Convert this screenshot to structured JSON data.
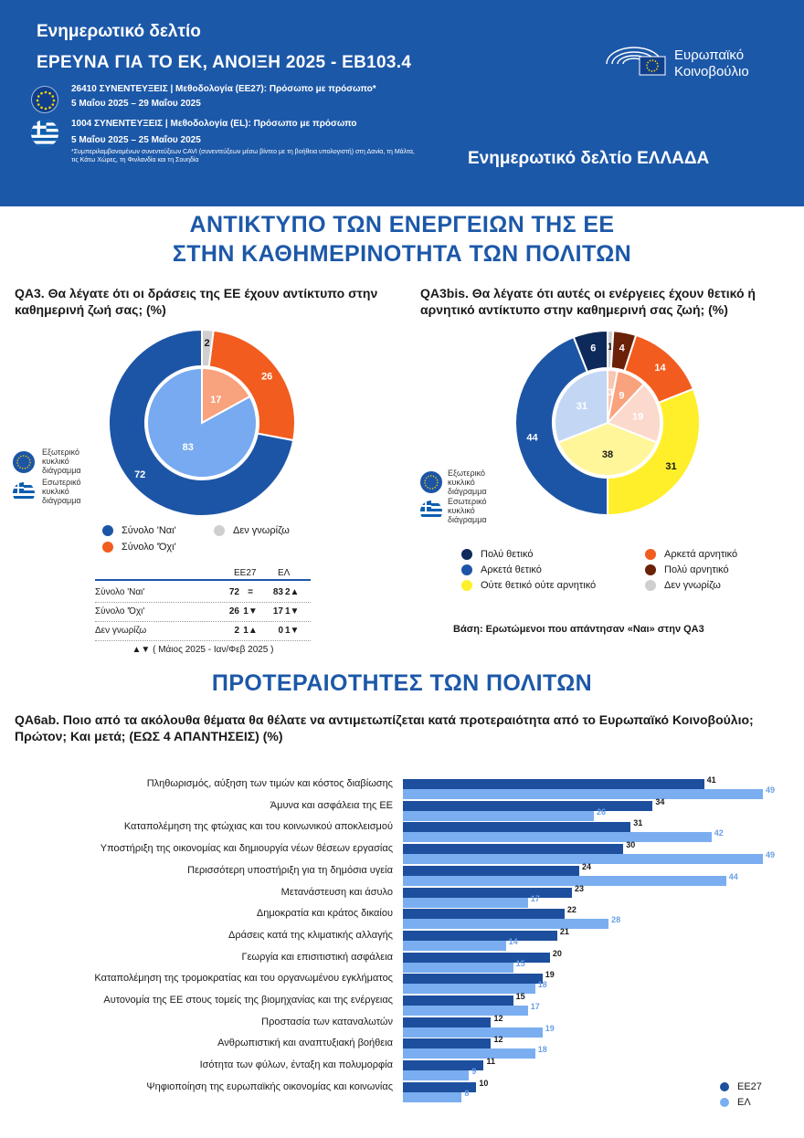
{
  "header": {
    "title_line1": "Ενημερωτικό δελτίο",
    "title_line2": "ΕΡΕΥΝΑ ΓΙΑ ΤΟ ΕΚ, ΑΝΟΙΞΗ 2025 - EB103.4",
    "eu_line1": "26410 ΣΥΝΕΝΤΕΥΞΕΙΣ | Μεθοδολογία (ΕΕ27): Πρόσωπο με πρόσωπο*",
    "eu_line2": "5 Μαΐου 2025 – 29 Μαΐου 2025",
    "gr_line1": "1004 ΣΥΝΕΝΤΕΥΞΕΙΣ | Μεθοδολογία (ΕL): Πρόσωπο με πρόσωπο",
    "gr_line2": "5 Μαΐου 2025 – 25 Μαΐου 2025",
    "note": "*Συμπεριλαμβανομένων συνεντεύξεων CAVI (συνεντεύξεων μέσω βίντεο με τη βοήθεια υπολογιστή) στη Δανία, τη Μάλτα, τις Κάτω Χώρες, τη Φινλανδία και τη Σουηδία",
    "logo_line1": "Ευρωπαϊκό",
    "logo_line2": "Κοινοβούλιο",
    "country_title": "Ενημερωτικό δελτίο ΕΛΛΑΔΑ"
  },
  "section1": {
    "title_line1": "ΑΝΤΙΚΤΥΠΟ ΤΩΝ ΕΝΕΡΓΕΙΩΝ ΤΗΣ ΕΕ",
    "title_line2": "ΣΤΗΝ  ΚΑΘΗΜΕΡΙΝΟΤΗΤΑ ΤΩΝ ΠΟΛΙΤΩΝ"
  },
  "section2": {
    "title": "ΠΡΟΤΕΡΑΙΟΤΗΤΕΣ ΤΩΝ ΠΟΛΙΤΩΝ"
  },
  "ring_legend": {
    "outer_line1": "Εξωτερικό",
    "outer_line2": "κυκλικό",
    "outer_line3": "διάγραμμα",
    "inner_line1": "Εσωτερικό",
    "inner_line2": "κυκλικό",
    "inner_line3": "διάγραμμα"
  },
  "table": {
    "col_eu": "ΕΕ27",
    "col_gr": "ΕΛ",
    "rows": [
      {
        "label": "Σύνολο 'Ναι'",
        "eu": "72",
        "mid": "=",
        "gr": "83",
        "chg": "2▲"
      },
      {
        "label": "Σύνολο 'Όχι'",
        "eu": "26",
        "mid": "1▼",
        "gr": "17",
        "chg": "1▼"
      },
      {
        "label": "Δεν γνωρίζω",
        "eu": "2",
        "mid": "1▲",
        "gr": "0",
        "chg": "1▼"
      }
    ],
    "footnote": "▲▼ ( Μάιος 2025 - Ιαν/Φεβ 2025 )"
  },
  "base_note": "Βάση: Ερωτώμενοι που απάντησαν «Ναι» στην QA3",
  "colors": {
    "brand": "#1c58a8",
    "yes": "#1d55a6",
    "no": "#f25c1f",
    "dk": "#cfcfcf",
    "very_pos": "#0e2a5a",
    "fairly_pos": "#1d55a6",
    "neutral": "#ffef2a",
    "fairly_neg": "#f25c1f",
    "very_neg": "#6b2108",
    "eu27_bar": "#1d4f9e",
    "el_bar": "#7aaef0"
  },
  "chart_data": [
    {
      "type": "pie",
      "title": "QA3. Θα λέγατε ότι οι δράσεις της ΕΕ έχουν αντίκτυπο στην καθημερινή ζωή σας; (%)",
      "legend": [
        "Σύνολο 'Ναι'",
        "Σύνολο 'Όχι'",
        "Δεν γνωρίζω"
      ],
      "outer": {
        "name": "Εξωτερικό κυκλικό διάγραμμα",
        "labels": [
          "Δεν γνωρίζω",
          "Σύνολο 'Όχι'",
          "Σύνολο 'Ναι'"
        ],
        "values": [
          2,
          26,
          72
        ]
      },
      "inner": {
        "name": "Εσωτερικό κυκλικό διάγραμμα",
        "labels": [
          "Σύνολο 'Όχι'",
          "Σύνολο 'Ναι'"
        ],
        "values": [
          17,
          83
        ]
      }
    },
    {
      "type": "pie",
      "title": "QA3bis. Θα λέγατε ότι αυτές οι ενέργειες έχουν θετικό ή αρνητικό αντίκτυπο στην καθημερινή σας ζωή; (%)",
      "legend": [
        "Πολύ θετικό",
        "Αρκετά θετικό",
        "Ούτε θετικό ούτε αρνητικό",
        "Αρκετά αρνητικό",
        "Πολύ αρνητικό",
        "Δεν γνωρίζω"
      ],
      "outer": {
        "name": "Εξωτερικό κυκλικό διάγραμμα",
        "labels": [
          "Δεν γνωρίζω",
          "Πολύ αρνητικό",
          "Αρκετά αρνητικό",
          "Ούτε θετικό ούτε αρνητικό",
          "Αρκετά θετικό",
          "Πολύ θετικό"
        ],
        "values": [
          1,
          4,
          14,
          31,
          44,
          6
        ]
      },
      "inner": {
        "name": "Εσωτερικό κυκλικό διάγραμμα",
        "labels": [
          "Πολύ αρνητικό",
          "Αρκετά αρνητικό",
          "Ούτε θετικό ούτε αρνητικό",
          "Αρκετά θετικό",
          "Πολύ θετικό"
        ],
        "values": [
          3,
          9,
          19,
          38,
          31
        ]
      }
    },
    {
      "type": "bar",
      "orientation": "horizontal",
      "title": "QA6ab. Ποιο από τα ακόλουθα θέματα θα θέλατε να αντιμετωπίζεται κατά προτεραιότητα από το Ευρωπαϊκό Κοινοβούλιο; Πρώτον;  Και μετά; (ΕΩΣ 4 ΑΠΑΝΤΗΣΕΙΣ) (%)",
      "categories": [
        "Πληθωρισμός, αύξηση των τιμών και κόστος διαβίωσης",
        "Άμυνα και ασφάλεια της ΕΕ",
        "Καταπολέμηση της φτώχιας και του κοινωνικού αποκλεισμού",
        "Υποστήριξη της οικονομίας και δημιουργία νέων θέσεων εργασίας",
        "Περισσότερη υποστήριξη για τη δημόσια υγεία",
        "Μετανάστευση και άσυλο",
        "Δημοκρατία και κράτος δικαίου",
        "Δράσεις κατά της κλιματικής αλλαγής",
        "Γεωργία και επισιτιστική ασφάλεια",
        "Καταπολέμηση της τρομοκρατίας και του οργανωμένου εγκλήματος",
        "Αυτονομία της ΕΕ στους τομείς της βιομηχανίας και της ενέργειας",
        "Προστασία των καταναλωτών",
        "Ανθρωπιστική και αναπτυξιακή βοήθεια",
        "Ισότητα των φύλων, ένταξη και πολυμορφία",
        "Ψηφιοποίηση της ευρωπαϊκής οικονομίας και κοινωνίας"
      ],
      "series": [
        {
          "name": "ΕΕ27",
          "values": [
            41,
            34,
            31,
            30,
            24,
            23,
            22,
            21,
            20,
            19,
            15,
            12,
            12,
            11,
            10
          ]
        },
        {
          "name": "ΕΛ",
          "values": [
            49,
            26,
            42,
            49,
            44,
            17,
            28,
            14,
            15,
            18,
            17,
            19,
            18,
            9,
            8
          ]
        }
      ],
      "xlim": [
        0,
        50
      ],
      "legend_position": "bottom-right"
    }
  ]
}
